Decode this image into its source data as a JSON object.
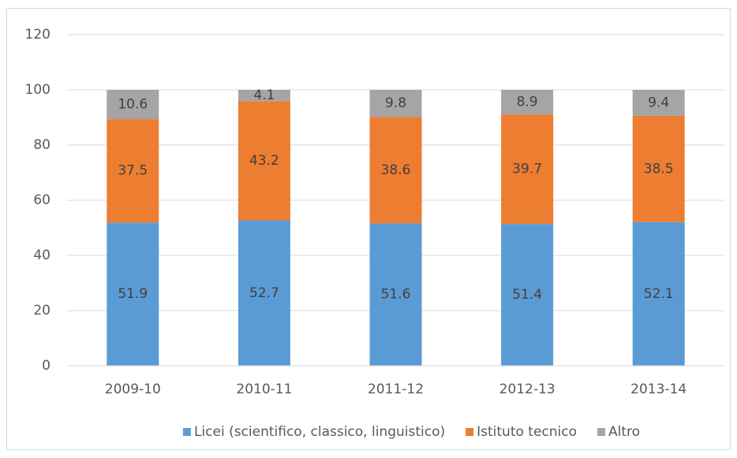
{
  "chart_data": {
    "type": "bar",
    "stacked": true,
    "categories": [
      "2009-10",
      "2010-11",
      "2011-12",
      "2012-13",
      "2013-14"
    ],
    "series": [
      {
        "name": "Licei (scientifico, classico, linguistico)",
        "color": "#5b9bd5",
        "values": [
          51.9,
          52.7,
          51.6,
          51.4,
          52.1
        ]
      },
      {
        "name": "Istituto tecnico",
        "color": "#ed7d31",
        "values": [
          37.5,
          43.2,
          38.6,
          39.7,
          38.5
        ]
      },
      {
        "name": "Altro",
        "color": "#a5a5a5",
        "values": [
          10.6,
          4.1,
          9.8,
          8.9,
          9.4
        ]
      }
    ],
    "ylim": [
      0,
      120
    ],
    "yticks": [
      0,
      20,
      40,
      60,
      80,
      100,
      120
    ],
    "grid": true,
    "legend": "bottom"
  }
}
